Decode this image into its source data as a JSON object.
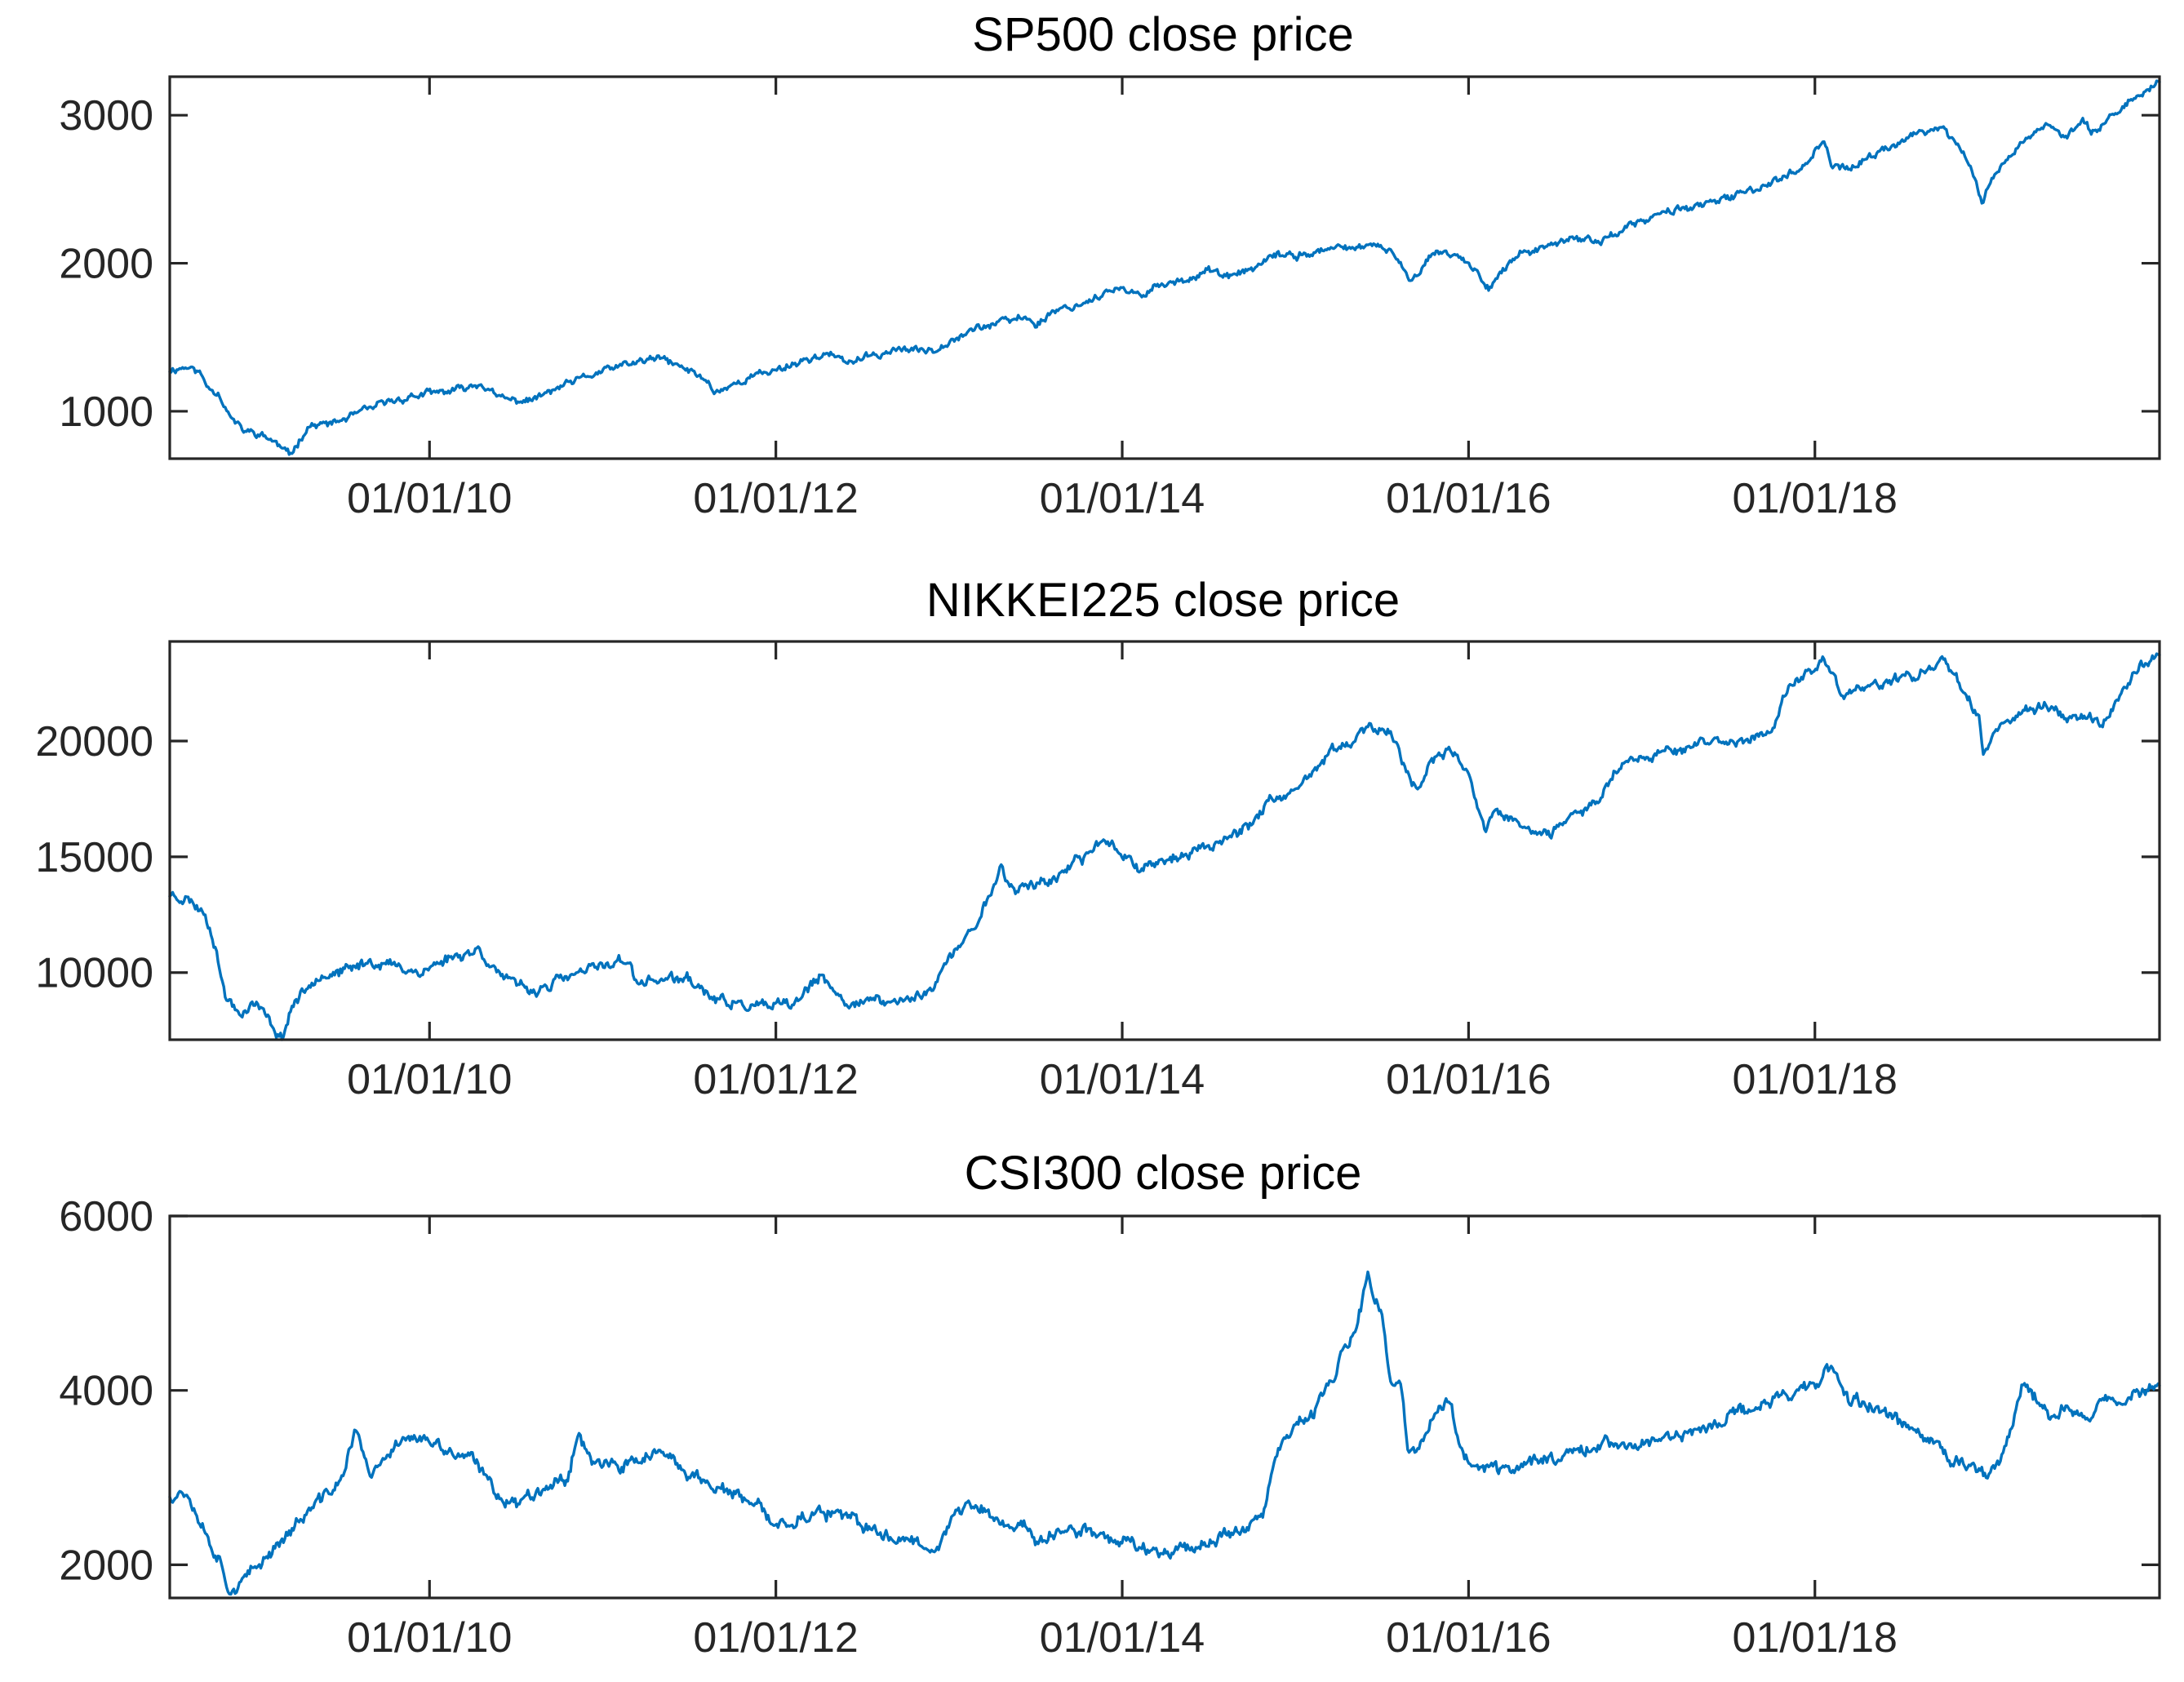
{
  "chart_data": [
    {
      "type": "line",
      "title": "SP500 close price",
      "xlabel": "",
      "ylabel": "",
      "series_color": "#0072BD",
      "xlim_year": [
        2008.5,
        2019.99
      ],
      "ylim": [
        680,
        3260
      ],
      "yticks": [
        1000,
        2000,
        3000
      ],
      "ytick_labels": [
        "1000",
        "2000",
        "3000"
      ],
      "xticks_year": [
        2010,
        2012,
        2014,
        2016,
        2018
      ],
      "xtick_labels": [
        "01/01/10",
        "01/01/12",
        "01/01/14",
        "01/01/16",
        "01/01/18"
      ],
      "series": [
        {
          "name": "SP500",
          "x": [
            2008.5,
            2008.6,
            2008.67,
            2008.72,
            2008.78,
            2008.85,
            2008.92,
            2009.0,
            2009.1,
            2009.19,
            2009.3,
            2009.45,
            2009.6,
            2009.75,
            2009.9,
            2010.0,
            2010.15,
            2010.3,
            2010.38,
            2010.5,
            2010.6,
            2010.75,
            2010.9,
            2011.0,
            2011.15,
            2011.33,
            2011.45,
            2011.59,
            2011.65,
            2011.75,
            2011.9,
            2012.0,
            2012.15,
            2012.3,
            2012.4,
            2012.55,
            2012.7,
            2012.8,
            2012.92,
            2013.0,
            2013.15,
            2013.3,
            2013.45,
            2013.5,
            2013.6,
            2013.75,
            2013.9,
            2014.0,
            2014.09,
            2014.2,
            2014.35,
            2014.5,
            2014.6,
            2014.79,
            2014.9,
            2015.0,
            2015.1,
            2015.3,
            2015.45,
            2015.55,
            2015.65,
            2015.72,
            2015.8,
            2015.9,
            2016.0,
            2016.12,
            2016.2,
            2016.3,
            2016.45,
            2016.6,
            2016.75,
            2016.85,
            2016.95,
            2017.0,
            2017.2,
            2017.4,
            2017.6,
            2017.8,
            2017.95,
            2018.05,
            2018.1,
            2018.2,
            2018.3,
            2018.45,
            2018.6,
            2018.74,
            2018.85,
            2018.9,
            2018.97,
            2019.0,
            2019.1,
            2019.2,
            2019.33,
            2019.45,
            2019.55,
            2019.6,
            2019.7,
            2019.8,
            2019.9,
            2019.99
          ],
          "y": [
            1280,
            1300,
            1265,
            1165,
            1130,
            960,
            870,
            850,
            800,
            700,
            900,
            920,
            990,
            1060,
            1100,
            1120,
            1140,
            1190,
            1100,
            1070,
            1080,
            1160,
            1230,
            1270,
            1320,
            1360,
            1300,
            1220,
            1130,
            1180,
            1250,
            1280,
            1340,
            1390,
            1330,
            1370,
            1420,
            1410,
            1420,
            1480,
            1560,
            1600,
            1640,
            1580,
            1680,
            1720,
            1800,
            1820,
            1780,
            1850,
            1880,
            1960,
            1900,
            1980,
            2060,
            2050,
            2070,
            2110,
            2110,
            2090,
            1900,
            1950,
            2080,
            2070,
            2000,
            1840,
            1950,
            2070,
            2100,
            2170,
            2150,
            2200,
            2260,
            2280,
            2370,
            2400,
            2480,
            2570,
            2670,
            2850,
            2650,
            2640,
            2700,
            2800,
            2880,
            2920,
            2750,
            2650,
            2400,
            2520,
            2700,
            2820,
            2940,
            2850,
            2950,
            2900,
            2980,
            3080,
            3150,
            3240
          ],
          "noise": 18,
          "seed": 11
        }
      ]
    },
    {
      "type": "line",
      "title": "NIKKEI225 close price",
      "xlabel": "",
      "ylabel": "",
      "series_color": "#0072BD",
      "xlim_year": [
        2008.5,
        2019.99
      ],
      "ylim": [
        7100,
        24300
      ],
      "yticks": [
        10000,
        15000,
        20000
      ],
      "ytick_labels": [
        "10000",
        "15000",
        "20000"
      ],
      "xticks_year": [
        2010,
        2012,
        2014,
        2016,
        2018
      ],
      "xtick_labels": [
        "01/01/10",
        "01/01/12",
        "01/01/14",
        "01/01/16",
        "01/01/18"
      ],
      "series": [
        {
          "name": "NIKKEI225",
          "x": [
            2008.5,
            2008.6,
            2008.7,
            2008.75,
            2008.82,
            2008.9,
            2009.0,
            2009.15,
            2009.2,
            2009.35,
            2009.5,
            2009.65,
            2009.8,
            2009.95,
            2010.1,
            2010.28,
            2010.45,
            2010.6,
            2010.8,
            2011.0,
            2011.15,
            2011.19,
            2011.3,
            2011.5,
            2011.65,
            2011.8,
            2011.95,
            2012.1,
            2012.25,
            2012.4,
            2012.5,
            2012.65,
            2012.8,
            2012.92,
            2013.0,
            2013.15,
            2013.3,
            2013.38,
            2013.45,
            2013.6,
            2013.75,
            2013.9,
            2014.0,
            2014.1,
            2014.2,
            2014.35,
            2014.5,
            2014.6,
            2014.75,
            2014.85,
            2014.95,
            2015.05,
            2015.2,
            2015.35,
            2015.45,
            2015.55,
            2015.62,
            2015.7,
            2015.8,
            2015.9,
            2016.0,
            2016.1,
            2016.15,
            2016.3,
            2016.45,
            2016.6,
            2016.75,
            2016.85,
            2016.95,
            2017.1,
            2017.3,
            2017.45,
            2017.6,
            2017.75,
            2017.85,
            2017.95,
            2018.05,
            2018.15,
            2018.3,
            2018.45,
            2018.6,
            2018.75,
            2018.85,
            2018.95,
            2018.97,
            2019.05,
            2019.2,
            2019.35,
            2019.5,
            2019.6,
            2019.65,
            2019.75,
            2019.85,
            2019.95,
            2019.99
          ],
          "y": [
            13400,
            13200,
            12600,
            11600,
            9000,
            8300,
            8700,
            7100,
            8500,
            9900,
            10000,
            10500,
            10300,
            10000,
            10600,
            11000,
            9600,
            9200,
            9800,
            10300,
            10600,
            9500,
            9700,
            9700,
            8800,
            8600,
            8500,
            8600,
            9800,
            8700,
            8800,
            8700,
            8900,
            9500,
            10600,
            12000,
            14500,
            13500,
            13800,
            14000,
            14800,
            15800,
            15200,
            14500,
            14800,
            15000,
            15500,
            15800,
            16500,
            17500,
            17400,
            18200,
            19500,
            20200,
            20500,
            20500,
            19000,
            18000,
            19200,
            19500,
            18500,
            16000,
            17000,
            16400,
            15800,
            16700,
            17500,
            18800,
            19300,
            19500,
            19800,
            20000,
            19900,
            20500,
            22500,
            22800,
            23600,
            22000,
            22400,
            22600,
            22800,
            23600,
            22400,
            21000,
            19500,
            20500,
            21300,
            21500,
            21000,
            21000,
            20700,
            21700,
            23000,
            23600,
            23900
          ],
          "noise": 170,
          "seed": 23
        }
      ]
    },
    {
      "type": "line",
      "title": "CSI300 close price",
      "xlabel": "",
      "ylabel": "",
      "series_color": "#0072BD",
      "xlim_year": [
        2008.5,
        2019.99
      ],
      "ylim": [
        1620,
        6000
      ],
      "yticks": [
        2000,
        4000,
        6000
      ],
      "ytick_labels": [
        "2000",
        "4000",
        "6000"
      ],
      "xticks_year": [
        2010,
        2012,
        2014,
        2016,
        2018
      ],
      "xtick_labels": [
        "01/01/10",
        "01/01/12",
        "01/01/14",
        "01/01/16",
        "01/01/18"
      ],
      "series": [
        {
          "name": "CSI300",
          "x": [
            2008.5,
            2008.6,
            2008.7,
            2008.8,
            2008.85,
            2008.95,
            2009.1,
            2009.3,
            2009.5,
            2009.58,
            2009.65,
            2009.75,
            2009.85,
            2010.0,
            2010.1,
            2010.25,
            2010.4,
            2010.5,
            2010.65,
            2010.8,
            2010.85,
            2010.95,
            2011.1,
            2011.3,
            2011.45,
            2011.6,
            2011.75,
            2011.9,
            2012.0,
            2012.15,
            2012.3,
            2012.45,
            2012.6,
            2012.75,
            2012.92,
            2013.05,
            2013.15,
            2013.3,
            2013.45,
            2013.5,
            2013.6,
            2013.8,
            2013.95,
            2014.05,
            2014.2,
            2014.35,
            2014.5,
            2014.65,
            2014.8,
            2014.9,
            2015.0,
            2015.1,
            2015.2,
            2015.35,
            2015.42,
            2015.5,
            2015.55,
            2015.62,
            2015.65,
            2015.7,
            2015.8,
            2015.9,
            2015.95,
            2016.05,
            2016.2,
            2016.4,
            2016.6,
            2016.8,
            2016.95,
            2017.1,
            2017.3,
            2017.5,
            2017.7,
            2017.9,
            2018.05,
            2018.1,
            2018.2,
            2018.35,
            2018.45,
            2018.6,
            2018.7,
            2018.8,
            2018.95,
            2019.0,
            2019.1,
            2019.2,
            2019.28,
            2019.35,
            2019.45,
            2019.55,
            2019.7,
            2019.85,
            2019.99
          ],
          "y": [
            2800,
            2850,
            2400,
            2000,
            1700,
            1850,
            2200,
            2600,
            3000,
            3600,
            3000,
            3200,
            3500,
            3400,
            3300,
            3200,
            2800,
            2700,
            2900,
            3000,
            3500,
            3200,
            3100,
            3300,
            3100,
            2950,
            2800,
            2650,
            2450,
            2550,
            2600,
            2500,
            2350,
            2300,
            2200,
            2600,
            2700,
            2450,
            2450,
            2250,
            2350,
            2400,
            2300,
            2250,
            2150,
            2200,
            2250,
            2400,
            2500,
            3300,
            3600,
            3700,
            4100,
            4700,
            5300,
            4800,
            4100,
            4000,
            3300,
            3300,
            3700,
            3900,
            3300,
            3100,
            3100,
            3200,
            3300,
            3400,
            3350,
            3450,
            3500,
            3700,
            3850,
            4000,
            4150,
            4250,
            3900,
            3800,
            3700,
            3500,
            3350,
            3200,
            3100,
            3050,
            3300,
            4050,
            3900,
            3700,
            3800,
            3700,
            3900,
            3950,
            4050
          ],
          "noise": 55,
          "seed": 37
        }
      ]
    }
  ]
}
